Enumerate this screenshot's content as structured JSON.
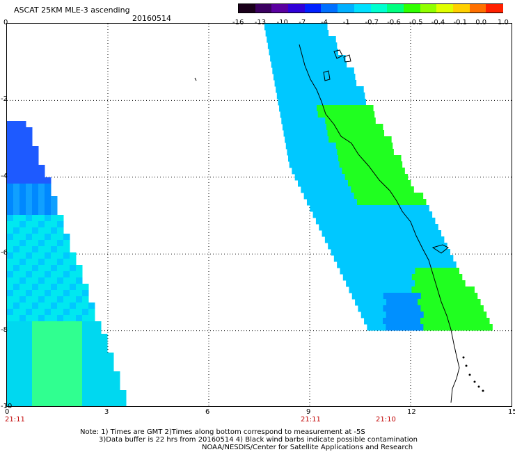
{
  "header": {
    "title": "ASCAT 25KM MLE-3 ascending",
    "date": "20160514"
  },
  "colorbar": {
    "colors": [
      "#1a001a",
      "#3b0060",
      "#5a00a0",
      "#3000d8",
      "#0020ff",
      "#0070ff",
      "#00b0ff",
      "#00e0ff",
      "#00ffd0",
      "#00ff80",
      "#30ff00",
      "#90ff00",
      "#e0ff00",
      "#ffd000",
      "#ff7000",
      "#ff2000"
    ],
    "labels": [
      "-16",
      "-13",
      "-10",
      "-7",
      "-4",
      "-1",
      "-0.7",
      "-0.6",
      "-0.5",
      "-0.4",
      "-0.1",
      "0.0",
      "1.0"
    ]
  },
  "axes": {
    "x_ticks": [
      "0",
      "3",
      "6",
      "9",
      "12",
      "15"
    ],
    "y_ticks": [
      "0",
      "-2",
      "-4",
      "-6",
      "-8",
      "-10"
    ],
    "time_labels": [
      "21:11",
      "21:11",
      "21:10"
    ]
  },
  "swaths": {
    "left": {
      "color_top": "#1e5aff",
      "color_mid": "#00e8f0",
      "color_low": "#30ff90"
    },
    "right": {
      "color_main": "#00c8ff",
      "color_green": "#20ff20"
    }
  },
  "notes": {
    "line1": "Note: 1) Times are GMT 2)Times along bottom correspond to measurement at -5S",
    "line2": "3)Data buffer is 22 hrs from 20160514 4) Black wind barbs indicate possible contamination",
    "line3": "NOAA/NESDIS/Center for Satellite Applications and Research"
  }
}
